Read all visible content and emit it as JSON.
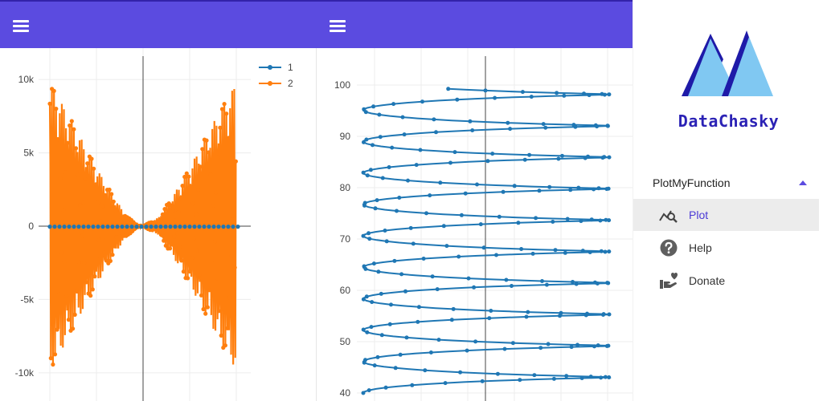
{
  "colors": {
    "appbar": "#5b4be0",
    "series1": "#1f77b4",
    "series2": "#ff7f0e",
    "accent": "#4b3ad6"
  },
  "left_pane": {
    "menu_icon": "hamburger-menu-icon"
  },
  "middle_pane": {
    "menu_icon": "hamburger-menu-icon"
  },
  "chart_data": [
    {
      "type": "line",
      "title": "",
      "xlabel": "",
      "ylabel": "",
      "ylim": [
        -10500,
        10500
      ],
      "y_ticks": [
        "10k",
        "5k",
        "0",
        "-5k",
        "-10k"
      ],
      "grid": true,
      "legend_position": "top-right",
      "series": [
        {
          "name": "1",
          "color": "#1f77b4",
          "description_values": "near-zero line along y=0"
        },
        {
          "name": "2",
          "color": "#ff7f0e",
          "amplitude_envelope": [
            9800,
            8000,
            6000,
            4000,
            2200,
            600,
            0,
            600,
            2200,
            4000,
            6000,
            8000,
            9800
          ]
        }
      ]
    },
    {
      "type": "line",
      "title": "",
      "xlabel": "",
      "ylabel": "",
      "ylim": [
        40,
        101
      ],
      "y_ticks": [
        "100",
        "90",
        "80",
        "70",
        "60",
        "50",
        "40"
      ],
      "grid": true,
      "series": [
        {
          "name": "",
          "color": "#1f77b4",
          "y_range": [
            40,
            100
          ]
        }
      ]
    }
  ],
  "sidebar": {
    "brand": "DataChasky",
    "section": {
      "label": "PlotMyFunction",
      "expanded": true
    },
    "items": [
      {
        "label": "Plot",
        "icon": "chart-search-icon",
        "active": true
      },
      {
        "label": "Help",
        "icon": "help-circle-icon",
        "active": false
      },
      {
        "label": "Donate",
        "icon": "donate-hand-heart-icon",
        "active": false
      }
    ]
  }
}
